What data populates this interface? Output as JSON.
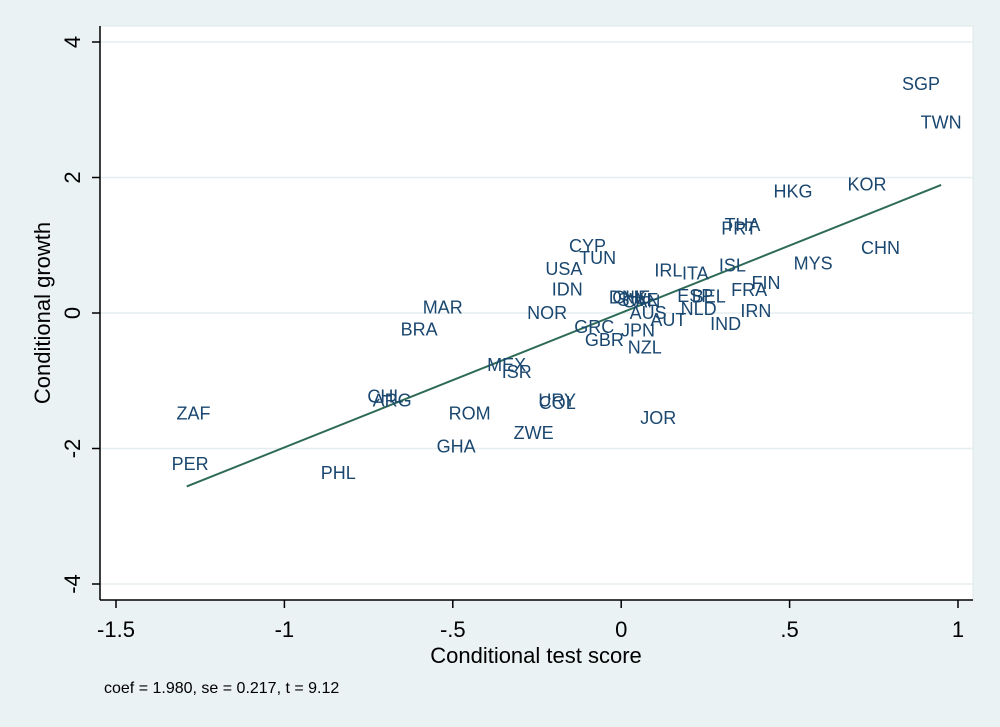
{
  "chart_data": {
    "type": "scatter",
    "xlabel": "Conditional test score",
    "ylabel": "Conditional growth",
    "xlim": [
      -1.55,
      1.05
    ],
    "ylim": [
      -4.2,
      4.2
    ],
    "xticks": [
      -1.5,
      -1,
      -0.5,
      0,
      0.5,
      1
    ],
    "xtick_labels": [
      "-1.5",
      "-1",
      "-.5",
      "0",
      ".5",
      "1"
    ],
    "yticks": [
      -4,
      -2,
      0,
      2,
      4
    ],
    "ytick_labels": [
      "-4",
      "-2",
      "0",
      "2",
      "4"
    ],
    "grid": "horizontal",
    "colors": {
      "plot_bg": "#ffffff",
      "outer_bg": "#eaf2f3",
      "marker_label": "#1a476f",
      "fit_line": "#2e6b57",
      "grid": "#e6edf0"
    },
    "points": [
      {
        "label": "SGP",
        "x": 0.89,
        "y": 3.38
      },
      {
        "label": "TWN",
        "x": 0.95,
        "y": 2.81
      },
      {
        "label": "HKG",
        "x": 0.51,
        "y": 1.79
      },
      {
        "label": "KOR",
        "x": 0.73,
        "y": 1.9
      },
      {
        "label": "CHN",
        "x": 0.77,
        "y": 0.96
      },
      {
        "label": "THA",
        "x": 0.36,
        "y": 1.3
      },
      {
        "label": "PRT",
        "x": 0.35,
        "y": 1.25
      },
      {
        "label": "MYS",
        "x": 0.57,
        "y": 0.73
      },
      {
        "label": "CYP",
        "x": -0.1,
        "y": 0.99
      },
      {
        "label": "TUN",
        "x": -0.07,
        "y": 0.81
      },
      {
        "label": "USA",
        "x": -0.17,
        "y": 0.65
      },
      {
        "label": "IDN",
        "x": -0.16,
        "y": 0.35
      },
      {
        "label": "IRL",
        "x": 0.14,
        "y": 0.63
      },
      {
        "label": "ITA",
        "x": 0.22,
        "y": 0.58
      },
      {
        "label": "ISL",
        "x": 0.33,
        "y": 0.7
      },
      {
        "label": "FIN",
        "x": 0.43,
        "y": 0.44
      },
      {
        "label": "FRA",
        "x": 0.38,
        "y": 0.34
      },
      {
        "label": "ESP",
        "x": 0.22,
        "y": 0.25
      },
      {
        "label": "BEL",
        "x": 0.26,
        "y": 0.24
      },
      {
        "label": "NLD",
        "x": 0.23,
        "y": 0.06
      },
      {
        "label": "DNK",
        "x": 0.02,
        "y": 0.23
      },
      {
        "label": "CHE",
        "x": 0.03,
        "y": 0.23
      },
      {
        "label": "SWE",
        "x": 0.05,
        "y": 0.19
      },
      {
        "label": "CAN",
        "x": 0.06,
        "y": 0.17
      },
      {
        "label": "AUS",
        "x": 0.08,
        "y": 0.0
      },
      {
        "label": "AUT",
        "x": 0.14,
        "y": -0.1
      },
      {
        "label": "IRN",
        "x": 0.4,
        "y": 0.03
      },
      {
        "label": "IND",
        "x": 0.31,
        "y": -0.16
      },
      {
        "label": "NOR",
        "x": -0.22,
        "y": 0.0
      },
      {
        "label": "MAR",
        "x": -0.53,
        "y": 0.08
      },
      {
        "label": "BRA",
        "x": -0.6,
        "y": -0.24
      },
      {
        "label": "GRC",
        "x": -0.08,
        "y": -0.21
      },
      {
        "label": "GBR",
        "x": -0.05,
        "y": -0.4
      },
      {
        "label": "JPN",
        "x": 0.05,
        "y": -0.26
      },
      {
        "label": "NZL",
        "x": 0.07,
        "y": -0.51
      },
      {
        "label": "MEX",
        "x": -0.34,
        "y": -0.77
      },
      {
        "label": "ISR",
        "x": -0.31,
        "y": -0.87
      },
      {
        "label": "CHL",
        "x": -0.7,
        "y": -1.23
      },
      {
        "label": "ARG",
        "x": -0.68,
        "y": -1.29
      },
      {
        "label": "URY",
        "x": -0.19,
        "y": -1.29
      },
      {
        "label": "COL",
        "x": -0.19,
        "y": -1.33
      },
      {
        "label": "ROM",
        "x": -0.45,
        "y": -1.48
      },
      {
        "label": "ZWE",
        "x": -0.26,
        "y": -1.77
      },
      {
        "label": "JOR",
        "x": 0.11,
        "y": -1.55
      },
      {
        "label": "GHA",
        "x": -0.49,
        "y": -1.97
      },
      {
        "label": "ZAF",
        "x": -1.27,
        "y": -1.48
      },
      {
        "label": "PER",
        "x": -1.28,
        "y": -2.23
      },
      {
        "label": "PHL",
        "x": -0.84,
        "y": -2.36
      }
    ],
    "fit_line": {
      "x": [
        -1.29,
        0.95
      ],
      "y": [
        -2.56,
        1.89
      ]
    },
    "note": "coef = 1.980, se = 0.217, t = 9.12"
  }
}
